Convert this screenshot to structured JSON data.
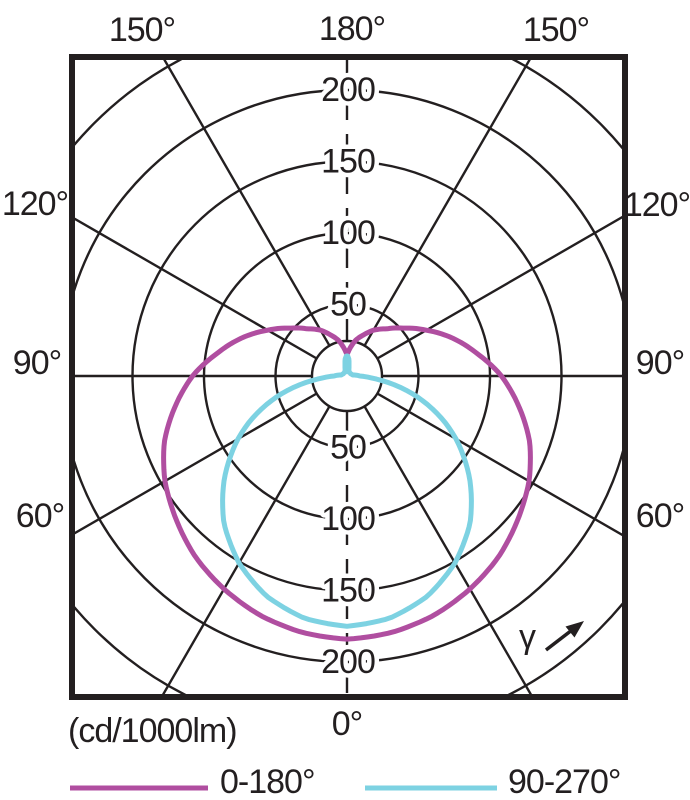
{
  "chart_data": {
    "type": "polar",
    "subtype": "photometric-light-distribution",
    "units_label": "(cd/1000lm)",
    "nadir_label": "0°",
    "gamma_symbol": "γ",
    "angle_labels": {
      "top": [
        "150°",
        "180°",
        "150°"
      ],
      "left": [
        "120°",
        "90°",
        "60°"
      ],
      "right": [
        "120°",
        "90°",
        "60°"
      ],
      "bottom": [
        "0°"
      ]
    },
    "radial_axis": {
      "unit": "cd/1000lm",
      "ring_step": 50,
      "rings": [
        50,
        100,
        150,
        200,
        250
      ],
      "labeled_rings_upper": [
        "200",
        "150",
        "100",
        "50"
      ],
      "labeled_rings_lower": [
        "50",
        "100",
        "150",
        "200"
      ]
    },
    "spoke_step_deg": 30,
    "series": [
      {
        "name": "0-180°",
        "plane": "C0-C180",
        "color": "#b04ea0",
        "samples_gamma_cd": [
          [
            0,
            184
          ],
          [
            10,
            182
          ],
          [
            20,
            178
          ],
          [
            30,
            172
          ],
          [
            40,
            165
          ],
          [
            50,
            156
          ],
          [
            60,
            147
          ],
          [
            70,
            136
          ],
          [
            80,
            122
          ],
          [
            90,
            108
          ],
          [
            100,
            92
          ],
          [
            110,
            78
          ],
          [
            120,
            64
          ],
          [
            130,
            52
          ],
          [
            140,
            43
          ],
          [
            150,
            37
          ],
          [
            158,
            31
          ],
          [
            166,
            26
          ],
          [
            172,
            21
          ],
          [
            177,
            17
          ],
          [
            180,
            15
          ]
        ]
      },
      {
        "name": "90-270°",
        "plane": "C90-C270",
        "color": "#7dd2e2",
        "samples_gamma_cd": [
          [
            0,
            175
          ],
          [
            10,
            172
          ],
          [
            20,
            164
          ],
          [
            30,
            151
          ],
          [
            40,
            134
          ],
          [
            50,
            112
          ],
          [
            60,
            88
          ],
          [
            65,
            75
          ],
          [
            70,
            61
          ],
          [
            75,
            47
          ],
          [
            80,
            32
          ],
          [
            85,
            18
          ],
          [
            90,
            9
          ],
          [
            100,
            4
          ],
          [
            120,
            3
          ],
          [
            140,
            3
          ],
          [
            155,
            3
          ],
          [
            165,
            5
          ],
          [
            170,
            8
          ],
          [
            174,
            12
          ],
          [
            178,
            14
          ],
          [
            180,
            14
          ]
        ]
      }
    ],
    "legend": [
      {
        "label": "0-180°",
        "color": "#b04ea0"
      },
      {
        "label": "90-270°",
        "color": "#7dd2e2"
      }
    ]
  },
  "colors": {
    "line": "#231f20",
    "background": "#ffffff",
    "curve_0_180": "#b04ea0",
    "curve_90_270": "#7dd2e2"
  }
}
